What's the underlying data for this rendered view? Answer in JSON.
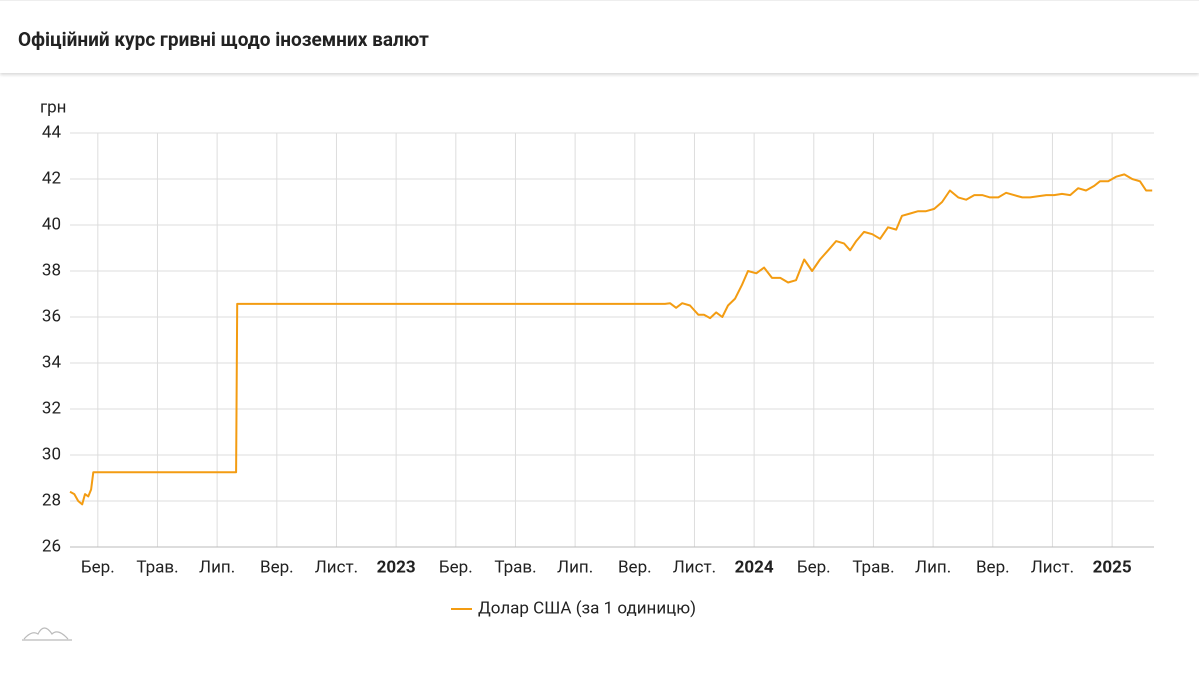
{
  "chart_data": {
    "type": "line",
    "title": "Офіційний курс гривні щодо іноземних валют",
    "y_label": "грн",
    "x": [
      2022.089,
      2022.101,
      2022.112,
      2022.123,
      2022.131,
      2022.14,
      2022.148,
      2022.154,
      2022.553,
      2022.556,
      2023.751,
      2023.765,
      2023.782,
      2023.799,
      2023.821,
      2023.844,
      2023.86,
      2023.877,
      2023.894,
      2023.911,
      2023.927,
      2023.947,
      2023.966,
      2023.983,
      2024.006,
      2024.028,
      2024.05,
      2024.073,
      2024.095,
      2024.117,
      2024.14,
      2024.162,
      2024.184,
      2024.207,
      2024.229,
      2024.251,
      2024.268,
      2024.285,
      2024.307,
      2024.33,
      2024.352,
      2024.374,
      2024.397,
      2024.413,
      2024.436,
      2024.458,
      2024.48,
      2024.503,
      2024.525,
      2024.547,
      2024.57,
      2024.592,
      2024.615,
      2024.637,
      2024.659,
      2024.682,
      2024.704,
      2024.726,
      2024.749,
      2024.771,
      2024.793,
      2024.816,
      2024.838,
      2024.86,
      2024.883,
      2024.905,
      2024.927,
      2024.95,
      2024.966,
      2024.989,
      2025.011,
      2025.034,
      2025.056,
      2025.078,
      2025.095,
      2025.112
    ],
    "series": [
      {
        "name": "Долар США (за 1 одиницю)",
        "color": "#f39c12",
        "values": [
          28.4,
          28.3,
          28.0,
          27.85,
          28.3,
          28.2,
          28.5,
          29.25,
          29.25,
          36.57,
          36.57,
          36.6,
          36.4,
          36.6,
          36.5,
          36.1,
          36.1,
          35.95,
          36.2,
          36.0,
          36.5,
          36.8,
          37.4,
          38.0,
          37.9,
          38.15,
          37.7,
          37.7,
          37.5,
          37.6,
          38.5,
          38.0,
          38.5,
          38.9,
          39.3,
          39.2,
          38.9,
          39.3,
          39.7,
          39.6,
          39.4,
          39.9,
          39.8,
          40.4,
          40.5,
          40.6,
          40.6,
          40.7,
          41.0,
          41.5,
          41.2,
          41.1,
          41.3,
          41.3,
          41.2,
          41.2,
          41.4,
          41.3,
          41.2,
          41.2,
          41.25,
          41.3,
          41.3,
          41.35,
          41.3,
          41.6,
          41.5,
          41.7,
          41.9,
          41.9,
          42.1,
          42.2,
          42.0,
          41.9,
          41.5,
          41.5
        ]
      }
    ],
    "xlim": [
      2022.089,
      2025.117
    ],
    "xticks": [
      {
        "value": 2022.1667,
        "label": "Бер."
      },
      {
        "value": 2022.3333,
        "label": "Трав."
      },
      {
        "value": 2022.5,
        "label": "Лип."
      },
      {
        "value": 2022.6667,
        "label": "Вер."
      },
      {
        "value": 2022.8333,
        "label": "Лист."
      },
      2023,
      {
        "value": 2023.1667,
        "label": "Бер."
      },
      {
        "value": 2023.3333,
        "label": "Трав."
      },
      {
        "value": 2023.5,
        "label": "Лип."
      },
      {
        "value": 2023.6667,
        "label": "Вер."
      },
      {
        "value": 2023.8333,
        "label": "Лист."
      },
      2024,
      {
        "value": 2024.1667,
        "label": "Бер."
      },
      {
        "value": 2024.3333,
        "label": "Трав."
      },
      {
        "value": 2024.5,
        "label": "Лип."
      },
      {
        "value": 2024.6667,
        "label": "Вер."
      },
      {
        "value": 2024.8333,
        "label": "Лист."
      },
      2025
    ],
    "ylim": [
      26,
      44
    ],
    "yticks": [
      26,
      28,
      30,
      32,
      34,
      36,
      38,
      40,
      42,
      44
    ],
    "grid": true
  }
}
